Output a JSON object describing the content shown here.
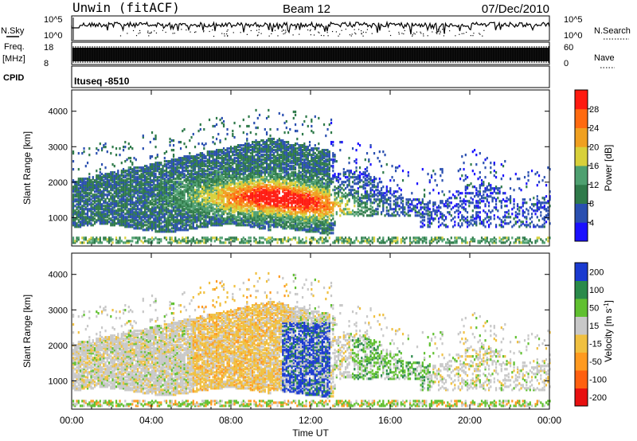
{
  "header": {
    "title": "Unwin (fitACF)",
    "beam": "Beam 12",
    "date": "07/Dec/2010"
  },
  "top_panel": {
    "nsky_label": "N.Sky",
    "nsky_ticks": [
      "10^5",
      "10^0"
    ],
    "nsearch_label": "N.Search",
    "nsearch_ticks": [
      "10^5",
      "10^0"
    ],
    "freq_label_1": "Freq.",
    "freq_label_2": "[MHz]",
    "freq_ticks": [
      "18",
      "8"
    ],
    "nave_label": "Nave",
    "nave_ticks": [
      "60",
      "0"
    ],
    "cpid_label": "CPID",
    "cpid_value": "Ituseq -8510"
  },
  "colors": {
    "power_scale": [
      "#1a10ff",
      "#2a4fb0",
      "#2f7a4a",
      "#4ea070",
      "#d8d03a",
      "#f0a020",
      "#ff6a10",
      "#ff1a10"
    ],
    "velocity_scale": [
      "#e81010",
      "#ff6010",
      "#ff9a20",
      "#f0c040",
      "#c8c8c8",
      "#60c030",
      "#2a8a4a",
      "#1a3ad0"
    ]
  },
  "chart_data": [
    {
      "type": "heatmap",
      "name": "power",
      "xlabel": "",
      "ylabel": "Slant Range [km]",
      "y_ticks": [
        "1000",
        "2000",
        "3000",
        "4000"
      ],
      "ylim": [
        200,
        4600
      ],
      "xlim": [
        0,
        24
      ],
      "colorbar_label": "Power [dB]",
      "colorbar_ticks": [
        "4",
        "8",
        "12",
        "16",
        "20",
        "24",
        "28"
      ],
      "colorbar_range": [
        0,
        32
      ]
    },
    {
      "type": "heatmap",
      "name": "velocity",
      "xlabel": "Time UT",
      "ylabel": "Slant Range [km]",
      "y_ticks": [
        "1000",
        "2000",
        "3000",
        "4000"
      ],
      "ylim": [
        200,
        4600
      ],
      "xlim": [
        0,
        24
      ],
      "x_ticks": [
        "00:00",
        "04:00",
        "08:00",
        "12:00",
        "16:00",
        "20:00",
        "00:00"
      ],
      "colorbar_label": "Velocity [m s^-1]",
      "colorbar_ticks": [
        "200",
        "100",
        "50",
        "15",
        "-15",
        "-50",
        "-100",
        "-200"
      ]
    }
  ]
}
